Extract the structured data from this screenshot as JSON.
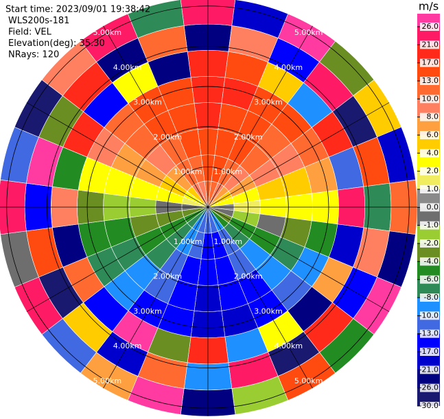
{
  "chart_data": {
    "type": "ppi",
    "info": [
      "Start time: 2023/09/01 19:38:42",
      "WLS200s-181",
      "Field: VEL",
      "Elevation(deg): 35.30",
      "NRays: 120"
    ],
    "azimuths": [
      0,
      15,
      30,
      45,
      60,
      75,
      90,
      105,
      120,
      135,
      150,
      165,
      180,
      195,
      210,
      225,
      240,
      255,
      270,
      285,
      300,
      315,
      330,
      345
    ],
    "range_bins": [
      0,
      0.65,
      1.3,
      1.95,
      2.6,
      3.25,
      3.9,
      4.55,
      5.2
    ],
    "values": [
      [
        10,
        13,
        15,
        17,
        17,
        17,
        -26,
        23
      ],
      [
        10,
        13,
        15,
        15,
        17,
        13,
        8,
        -21
      ],
      [
        8,
        10,
        13,
        13,
        15,
        5,
        -15,
        27
      ],
      [
        6,
        8,
        10,
        10,
        13,
        -9,
        22,
        -3
      ],
      [
        4,
        6,
        8,
        8,
        10,
        18,
        -27,
        5
      ],
      [
        2,
        3,
        4,
        4,
        6,
        -12,
        14,
        -19
      ],
      [
        0.5,
        1,
        2,
        2,
        3,
        25,
        -7,
        11
      ],
      [
        -1,
        -2,
        -1,
        -3,
        -5,
        -18,
        9,
        -24
      ],
      [
        -3,
        -5,
        -6,
        -7,
        -9,
        7,
        -14,
        28
      ],
      [
        -6,
        -8,
        -9,
        -10,
        -11,
        -22,
        19,
        -5
      ],
      [
        -9,
        -11,
        -12,
        -14,
        -15,
        3,
        -28,
        16
      ],
      [
        -11,
        -14,
        -15,
        -16,
        -18,
        -10,
        24,
        -2
      ],
      [
        -12,
        -15,
        -17,
        -18,
        -19,
        20,
        -9,
        -25
      ],
      [
        -11,
        -13,
        -15,
        -15,
        -17,
        -4,
        12,
        29
      ],
      [
        -9,
        -10,
        -11,
        -12,
        -14,
        26,
        -20,
        6
      ],
      [
        -7,
        -8,
        -8,
        -9,
        -10,
        -16,
        4,
        -13
      ],
      [
        -5,
        -6,
        -6,
        -7,
        -7,
        11,
        -29,
        21
      ],
      [
        -3,
        -4,
        -4,
        -5,
        -5,
        -23,
        15,
        -1
      ],
      [
        -0.5,
        -1,
        -1.5,
        -2,
        -3,
        8,
        -17,
        24
      ],
      [
        1,
        2,
        3,
        3,
        3,
        -6,
        27,
        -11
      ],
      [
        3,
        5,
        6,
        7,
        8,
        17,
        -3,
        -27
      ],
      [
        5,
        7,
        9,
        10,
        11,
        -14,
        20,
        9
      ],
      [
        8,
        10,
        12,
        13,
        14,
        2,
        -22,
        25
      ],
      [
        9,
        12,
        14,
        16,
        16,
        -26,
        10,
        -8
      ]
    ],
    "rlim": [
      0,
      5.2
    ],
    "rings": [
      {
        "value": 1,
        "label": "1.00km"
      },
      {
        "value": 2,
        "label": "2.00km"
      },
      {
        "value": 3,
        "label": "3.00km"
      },
      {
        "value": 4,
        "label": "4.00km"
      },
      {
        "value": 5,
        "label": "5.00km"
      }
    ],
    "colorbar": {
      "label": "m/s",
      "ticks": [
        {
          "value": 26,
          "label": "26.0"
        },
        {
          "value": 21,
          "label": "21.0"
        },
        {
          "value": 17,
          "label": "17.0"
        },
        {
          "value": 13,
          "label": "13.0"
        },
        {
          "value": 10,
          "label": "10.0"
        },
        {
          "value": 8,
          "label": "8.0"
        },
        {
          "value": 6,
          "label": "6.0"
        },
        {
          "value": 4,
          "label": "4.0"
        },
        {
          "value": 2,
          "label": "2.0"
        },
        {
          "value": 1,
          "label": "1.0"
        },
        {
          "value": 0,
          "label": "0.0"
        },
        {
          "value": -1,
          "label": "-1.0"
        },
        {
          "value": -2,
          "label": "-2.0"
        },
        {
          "value": -4,
          "label": "-4.0"
        },
        {
          "value": -6,
          "label": "-6.0"
        },
        {
          "value": -8,
          "label": "-8.0"
        },
        {
          "value": -10,
          "label": "-10.0"
        },
        {
          "value": -13,
          "label": "-13.0"
        },
        {
          "value": -17,
          "label": "-17.0"
        },
        {
          "value": -21,
          "label": "-21.0"
        },
        {
          "value": -26,
          "label": "-26.0"
        },
        {
          "value": -30,
          "label": "-30.0"
        }
      ],
      "colors": [
        "#ff3aa0",
        "#ff1a66",
        "#ff2a1a",
        "#ff4a10",
        "#ff6a30",
        "#ff8060",
        "#ffa040",
        "#ffcc00",
        "#ffff00",
        "#f0ee60",
        "#8a8a8a",
        "#6e6e6e",
        "#9acd32",
        "#6b8e23",
        "#228b22",
        "#2e8b57",
        "#1e90ff",
        "#4169e1",
        "#0000ff",
        "#0000cd",
        "#000080",
        "#191970"
      ]
    }
  }
}
